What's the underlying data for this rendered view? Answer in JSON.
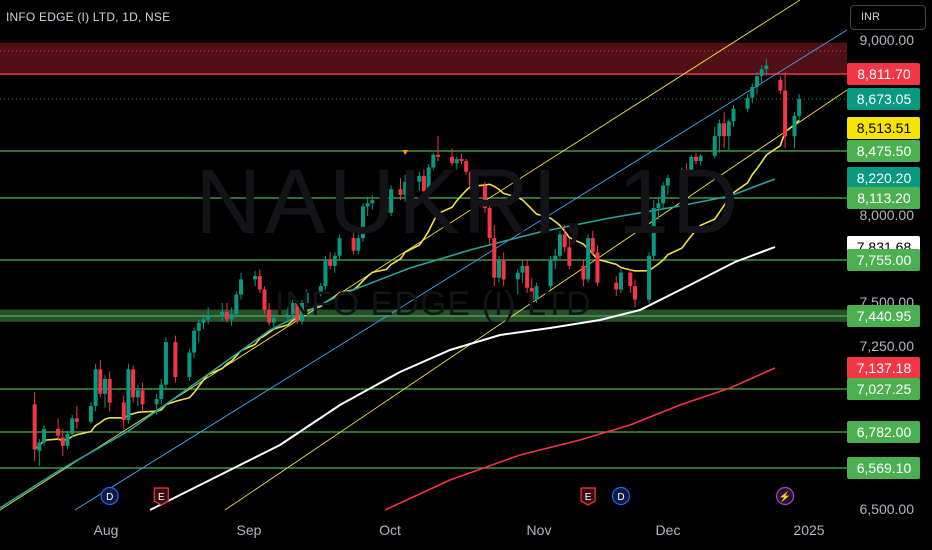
{
  "header": {
    "title": "INFO EDGE (I) LTD, 1D, NSE",
    "currency": "INR"
  },
  "watermark": {
    "symbol": "NAUKRI, 1D",
    "name": "INFO EDGE (I) LTD"
  },
  "colors": {
    "up": "#089981",
    "down": "#f23645",
    "level": "#4caf50",
    "ma20": "#f0e14a",
    "ma50": "#26a69a",
    "ma100": "#ffffff",
    "ma200": "#f23645",
    "channel": "#f0e14a",
    "channel_mid": "#42a5f5"
  },
  "chart_data": {
    "type": "candlestick",
    "title": "INFO EDGE (I) LTD, 1D, NSE",
    "currency": "INR",
    "x_ticks": [
      "Aug",
      "Sep",
      "Oct",
      "Nov",
      "Dec",
      "2025"
    ],
    "y_ticks": [
      "9,000.00",
      "8,000.00",
      "7,500.00",
      "7,250.00",
      "6,500.00"
    ],
    "ylim": [
      6500,
      9050
    ],
    "price_labels": [
      {
        "value": 8811.7,
        "text": "8,811.70",
        "kind": "resistance"
      },
      {
        "value": 8673.05,
        "text": "8,673.05",
        "kind": "last_price"
      },
      {
        "value": 8513.51,
        "text": "8,513.51",
        "kind": "ma20"
      },
      {
        "value": 8475.5,
        "text": "8,475.50",
        "kind": "level"
      },
      {
        "value": 8220.2,
        "text": "8,220.20",
        "kind": "ma50"
      },
      {
        "value": 8113.2,
        "text": "8,113.20",
        "kind": "level"
      },
      {
        "value": 7831.68,
        "text": "7,831.68",
        "kind": "ma100"
      },
      {
        "value": 7755.0,
        "text": "7,755.00",
        "kind": "level"
      },
      {
        "value": 7440.95,
        "text": "7,440.95",
        "kind": "level"
      },
      {
        "value": 7137.18,
        "text": "7,137.18",
        "kind": "ma200"
      },
      {
        "value": 7027.25,
        "text": "7,027.25",
        "kind": "level"
      },
      {
        "value": 6782.0,
        "text": "6,782.00",
        "kind": "level"
      },
      {
        "value": 6569.1,
        "text": "6,569.10",
        "kind": "level"
      }
    ],
    "resistance_zone": [
      8811.7,
      8990
    ],
    "support_band": [
      7405,
      7470
    ],
    "events": [
      {
        "date": "2024-08-02",
        "type": "dividend",
        "label": "D"
      },
      {
        "date": "2024-08-13",
        "type": "earnings",
        "label": "E"
      },
      {
        "date": "2024-11-12",
        "type": "earnings",
        "label": "E"
      },
      {
        "date": "2024-11-19",
        "type": "dividend",
        "label": "D"
      },
      {
        "date": "2024-12-24",
        "type": "split",
        "label": "⚡"
      }
    ],
    "ohlc": [
      [
        "2024-07-17",
        6940,
        7010,
        6610,
        6680
      ],
      [
        "2024-07-18",
        6670,
        6740,
        6580,
        6720
      ],
      [
        "2024-07-19",
        6720,
        6820,
        6700,
        6800
      ],
      [
        "2024-07-22",
        6800,
        6860,
        6730,
        6760
      ],
      [
        "2024-07-23",
        6750,
        6800,
        6640,
        6700
      ],
      [
        "2024-07-24",
        6700,
        6790,
        6680,
        6770
      ],
      [
        "2024-07-25",
        6770,
        6880,
        6750,
        6860
      ],
      [
        "2024-07-26",
        6860,
        6930,
        6800,
        6840
      ],
      [
        "2024-07-29",
        6840,
        6950,
        6830,
        6930
      ],
      [
        "2024-07-30",
        6930,
        7160,
        6900,
        7130
      ],
      [
        "2024-07-31",
        7130,
        7180,
        6980,
        7000
      ],
      [
        "2024-08-01",
        7000,
        7100,
        6920,
        7080
      ],
      [
        "2024-08-02",
        7080,
        7120,
        6900,
        6950
      ],
      [
        "2024-08-05",
        6950,
        6990,
        6800,
        6850
      ],
      [
        "2024-08-06",
        6850,
        7160,
        6830,
        7130
      ],
      [
        "2024-08-07",
        7130,
        7150,
        6950,
        6980
      ],
      [
        "2024-08-08",
        6980,
        7050,
        6930,
        7020
      ],
      [
        "2024-08-09",
        7020,
        7060,
        6900,
        6940
      ],
      [
        "2024-08-12",
        6940,
        7000,
        6880,
        6970
      ],
      [
        "2024-08-13",
        6970,
        7080,
        6940,
        7050
      ],
      [
        "2024-08-14",
        7050,
        7310,
        7030,
        7280
      ],
      [
        "2024-08-16",
        7280,
        7320,
        7060,
        7090
      ],
      [
        "2024-08-19",
        7090,
        7240,
        7070,
        7220
      ],
      [
        "2024-08-20",
        7220,
        7370,
        7190,
        7350
      ],
      [
        "2024-08-21",
        7350,
        7420,
        7280,
        7400
      ],
      [
        "2024-08-22",
        7400,
        7450,
        7360,
        7420
      ],
      [
        "2024-08-23",
        7420,
        7480,
        7390,
        7440
      ],
      [
        "2024-08-26",
        7440,
        7500,
        7410,
        7460
      ],
      [
        "2024-08-27",
        7460,
        7500,
        7400,
        7420
      ],
      [
        "2024-08-28",
        7420,
        7480,
        7380,
        7450
      ],
      [
        "2024-08-29",
        7450,
        7570,
        7430,
        7550
      ],
      [
        "2024-08-30",
        7550,
        7680,
        7520,
        7640
      ],
      [
        "2024-09-02",
        7640,
        7690,
        7600,
        7660
      ],
      [
        "2024-09-03",
        7660,
        7700,
        7560,
        7580
      ],
      [
        "2024-09-04",
        7580,
        7600,
        7450,
        7470
      ],
      [
        "2024-09-05",
        7470,
        7500,
        7380,
        7400
      ],
      [
        "2024-09-06",
        7400,
        7450,
        7360,
        7430
      ],
      [
        "2024-09-09",
        7430,
        7480,
        7400,
        7450
      ],
      [
        "2024-09-10",
        7450,
        7520,
        7420,
        7500
      ],
      [
        "2024-09-11",
        7500,
        7510,
        7390,
        7410
      ],
      [
        "2024-09-12",
        7410,
        7520,
        7390,
        7500
      ],
      [
        "2024-09-13",
        7500,
        7580,
        7480,
        7560
      ],
      [
        "2024-09-16",
        7560,
        7620,
        7540,
        7600
      ],
      [
        "2024-09-17",
        7600,
        7780,
        7580,
        7760
      ],
      [
        "2024-09-18",
        7760,
        7800,
        7700,
        7720
      ],
      [
        "2024-09-19",
        7720,
        7800,
        7680,
        7780
      ],
      [
        "2024-09-20",
        7780,
        7900,
        7760,
        7880
      ],
      [
        "2024-09-23",
        7880,
        7920,
        7790,
        7810
      ],
      [
        "2024-09-24",
        7810,
        7900,
        7790,
        7880
      ],
      [
        "2024-09-25",
        7880,
        8080,
        7860,
        8060
      ],
      [
        "2024-09-26",
        8060,
        8120,
        8000,
        8080
      ],
      [
        "2024-09-27",
        8080,
        8130,
        8040,
        8100
      ],
      [
        "2024-09-30",
        8100,
        8150,
        8000,
        8020
      ],
      [
        "2024-10-01",
        8020,
        8180,
        8000,
        8160
      ],
      [
        "2024-10-03",
        8160,
        8220,
        8100,
        8130
      ],
      [
        "2024-10-04",
        8130,
        8250,
        8090,
        8200
      ],
      [
        "2024-10-07",
        8200,
        8280,
        8150,
        8240
      ],
      [
        "2024-10-08",
        8240,
        8300,
        8100,
        8150
      ],
      [
        "2024-10-09",
        8150,
        8350,
        8120,
        8320
      ],
      [
        "2024-10-10",
        8320,
        8460,
        8300,
        8440
      ],
      [
        "2024-10-11",
        8440,
        8500,
        8380,
        8420
      ],
      [
        "2024-10-14",
        8420,
        8480,
        8340,
        8360
      ],
      [
        "2024-10-15",
        8360,
        8420,
        8300,
        8400
      ],
      [
        "2024-10-16",
        8400,
        8450,
        8350,
        8380
      ],
      [
        "2024-10-17",
        8380,
        8400,
        8250,
        8280
      ],
      [
        "2024-10-18",
        8280,
        8300,
        8150,
        8180
      ],
      [
        "2024-10-21",
        8180,
        8200,
        8020,
        8050
      ],
      [
        "2024-10-22",
        8050,
        8080,
        7850,
        7880
      ],
      [
        "2024-10-23",
        7880,
        7950,
        7600,
        7650
      ],
      [
        "2024-10-24",
        7650,
        7780,
        7620,
        7750
      ],
      [
        "2024-10-25",
        7750,
        7800,
        7600,
        7640
      ],
      [
        "2024-10-28",
        7640,
        7700,
        7550,
        7680
      ],
      [
        "2024-10-29",
        7680,
        7750,
        7620,
        7720
      ],
      [
        "2024-10-30",
        7720,
        7760,
        7560,
        7590
      ],
      [
        "2024-10-31",
        7590,
        7650,
        7480,
        7520
      ],
      [
        "2024-11-01",
        7520,
        7620,
        7500,
        7600
      ],
      [
        "2024-11-04",
        7600,
        7780,
        7580,
        7750
      ],
      [
        "2024-11-05",
        7750,
        7820,
        7700,
        7780
      ],
      [
        "2024-11-06",
        7780,
        7920,
        7760,
        7900
      ],
      [
        "2024-11-07",
        7900,
        7950,
        7800,
        7830
      ],
      [
        "2024-11-08",
        7830,
        7880,
        7700,
        7720
      ],
      [
        "2024-11-11",
        7720,
        7760,
        7600,
        7640
      ],
      [
        "2024-11-12",
        7640,
        7900,
        7620,
        7880
      ],
      [
        "2024-11-13",
        7880,
        7920,
        7780,
        7800
      ],
      [
        "2024-11-14",
        7800,
        7840,
        7600,
        7620
      ],
      [
        "2024-11-18",
        7620,
        7660,
        7540,
        7580
      ],
      [
        "2024-11-19",
        7580,
        7700,
        7560,
        7680
      ],
      [
        "2024-11-21",
        7680,
        7700,
        7560,
        7600
      ],
      [
        "2024-11-22",
        7600,
        7640,
        7480,
        7520
      ],
      [
        "2024-11-25",
        7520,
        7800,
        7500,
        7780
      ],
      [
        "2024-11-26",
        7780,
        8100,
        7760,
        8050
      ],
      [
        "2024-11-27",
        8050,
        8120,
        7980,
        8080
      ],
      [
        "2024-11-28",
        8080,
        8200,
        8050,
        8180
      ],
      [
        "2024-11-29",
        8180,
        8250,
        8130,
        8220
      ],
      [
        "2024-12-02",
        8220,
        8320,
        8180,
        8300
      ],
      [
        "2024-12-03",
        8300,
        8360,
        8250,
        8280
      ],
      [
        "2024-12-04",
        8280,
        8440,
        8260,
        8420
      ],
      [
        "2024-12-05",
        8420,
        8460,
        8350,
        8380
      ],
      [
        "2024-12-06",
        8380,
        8450,
        8340,
        8430
      ],
      [
        "2024-12-09",
        8430,
        8520,
        8410,
        8500
      ],
      [
        "2024-12-10",
        8500,
        8560,
        8460,
        8540
      ],
      [
        "2024-12-11",
        8540,
        8600,
        8480,
        8500
      ],
      [
        "2024-12-12",
        8500,
        8560,
        8470,
        8550
      ],
      [
        "2024-12-13",
        8550,
        8640,
        8520,
        8620
      ],
      [
        "2024-12-16",
        8620,
        8700,
        8600,
        8680
      ],
      [
        "2024-12-17",
        8680,
        8760,
        8650,
        8740
      ],
      [
        "2024-12-18",
        8740,
        8820,
        8700,
        8800
      ],
      [
        "2024-12-19",
        8800,
        8860,
        8760,
        8840
      ],
      [
        "2024-12-20",
        8840,
        8900,
        8800,
        8860
      ],
      [
        "2024-12-23",
        8780,
        8800,
        8700,
        8720
      ],
      [
        "2024-12-24",
        8720,
        8820,
        8480,
        8500
      ],
      [
        "2024-12-26",
        8500,
        8600,
        8480,
        8580
      ],
      [
        "2024-12-27",
        8580,
        8700,
        8560,
        8673
      ]
    ]
  }
}
